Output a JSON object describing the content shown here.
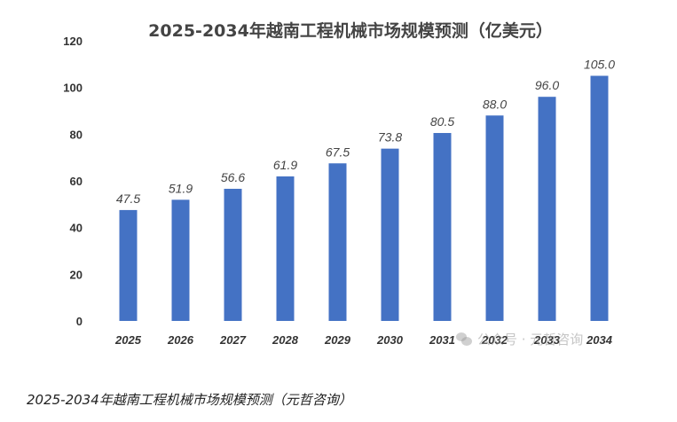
{
  "chart_data": {
    "type": "bar",
    "title": "2025-2034年越南工程机械市场规模预测（亿美元）",
    "categories": [
      "2025",
      "2026",
      "2027",
      "2028",
      "2029",
      "2030",
      "2031",
      "2032",
      "2033",
      "2034"
    ],
    "values": [
      47.5,
      51.9,
      56.6,
      61.9,
      67.5,
      73.8,
      80.5,
      88.0,
      96.0,
      105.0
    ],
    "data_labels": [
      "47.5",
      "51.9",
      "56.6",
      "61.9",
      "67.5",
      "73.8",
      "80.5",
      "88.0",
      "96.0",
      "105.0"
    ],
    "yticks": [
      0,
      20,
      40,
      60,
      80,
      100,
      120
    ],
    "ylim": [
      0,
      120
    ],
    "xlabel": "",
    "ylabel": "",
    "grid": false,
    "legend": "none",
    "bar_color": "#4472C4"
  },
  "watermark": {
    "text": "公众号 · 元哲咨询",
    "icon": "wechat-icon"
  },
  "caption": "2025-2034年越南工程机械市场规模预测（元哲咨询）"
}
